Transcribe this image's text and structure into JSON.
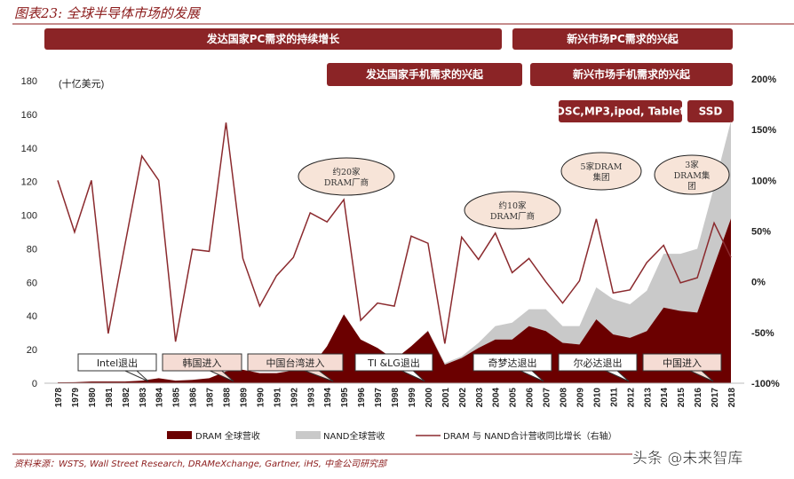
{
  "title": "图表23: 全球半导体市场的发展",
  "source": "资料来源：WSTS, Wall Street Research, DRAMeXchange, Gartner, iHS, 中金公司研究部",
  "watermark": "头条 @未来智库",
  "colors": {
    "dram": "#6b0000",
    "nand": "#c9c9c9",
    "growth_line": "#8b2a2e",
    "banner": "#8b2426",
    "ellipse": "#f7e4d8",
    "callout_pink": "#f5dcd4"
  },
  "banners": [
    {
      "label": "发达国家PC需求的持续增长"
    },
    {
      "label": "新兴市场PC需求的兴起"
    },
    {
      "label": "发达国家手机需求的兴起"
    },
    {
      "label": "新兴市场手机需求的兴起"
    },
    {
      "label": "DSC,MP3,ipod, Tablet"
    },
    {
      "label": "SSD"
    }
  ],
  "ellipses": [
    {
      "lines": [
        "约20家",
        "DRAM厂商"
      ]
    },
    {
      "lines": [
        "约10家",
        "DRAM厂商"
      ]
    },
    {
      "lines": [
        "5家DRAM",
        "集团"
      ]
    },
    {
      "lines": [
        "3家",
        "DRAM集",
        "团"
      ]
    }
  ],
  "callouts": [
    {
      "label": "Intel退出",
      "style": "white"
    },
    {
      "label": "韩国进入",
      "style": "pink"
    },
    {
      "label": "中国台湾进入",
      "style": "pink"
    },
    {
      "label": "TI &LG退出",
      "style": "white"
    },
    {
      "label": "奇梦达退出",
      "style": "white"
    },
    {
      "label": "尔必达退出",
      "style": "white"
    },
    {
      "label": "中国进入",
      "style": "pink"
    }
  ],
  "chart_data": {
    "type": "area",
    "unit_label": "(十亿美元)",
    "x": [
      1978,
      1979,
      1980,
      1981,
      1982,
      1983,
      1984,
      1985,
      1986,
      1987,
      1988,
      1989,
      1990,
      1991,
      1992,
      1993,
      1994,
      1995,
      1996,
      1997,
      1998,
      1999,
      2000,
      2001,
      2002,
      2003,
      2004,
      2005,
      2006,
      2007,
      2008,
      2009,
      2010,
      2011,
      2012,
      2013,
      2014,
      2015,
      2016,
      2017,
      2018
    ],
    "x_tick_labels": [
      "1978",
      "1979",
      "1980",
      "1981",
      "1982",
      "1983",
      "1984",
      "1985",
      "1986",
      "1987",
      "1988",
      "1989",
      "1990",
      "1991",
      "1992",
      "1993",
      "1994",
      "1995",
      "1996",
      "1997",
      "1998",
      "1999",
      "2000",
      "2001",
      "2002",
      "2003",
      "2004",
      "2005",
      "2006",
      "2007",
      "2008",
      "2009",
      "2010",
      "2011",
      "2012",
      "2013",
      "2014",
      "2015",
      "2016",
      "2017",
      "2018"
    ],
    "ylim_left": [
      0,
      180
    ],
    "y_left_ticks": [
      "0",
      "20",
      "40",
      "60",
      "80",
      "100",
      "120",
      "140",
      "160",
      "180"
    ],
    "ylim_right": [
      -100,
      200
    ],
    "y_right_ticks": [
      "-100%",
      "-50%",
      "0%",
      "50%",
      "100%",
      "150%",
      "200%"
    ],
    "grid": false,
    "legend_position": "bottom",
    "series": [
      {
        "name": "DRAM 全球营收",
        "type": "stacked-area",
        "axis": "left",
        "values": [
          0.5,
          0.6,
          1,
          1,
          1,
          1.5,
          3,
          1.5,
          2,
          3,
          7,
          8,
          6,
          6,
          7.5,
          9,
          22,
          41,
          26,
          21,
          14,
          22,
          31,
          11,
          15,
          21,
          26,
          26,
          34,
          31,
          24,
          23,
          38,
          29,
          27,
          31,
          45,
          43,
          42,
          70,
          98
        ]
      },
      {
        "name": "NAND全球营收",
        "type": "stacked-area",
        "axis": "left",
        "values": [
          0,
          0,
          0,
          0,
          0,
          0,
          0,
          0,
          0,
          0,
          0,
          0,
          0,
          0,
          0,
          0,
          0,
          0,
          0,
          0,
          0,
          0,
          0.5,
          1,
          1,
          3,
          8,
          10,
          10,
          13,
          10,
          11,
          19,
          21,
          20,
          24,
          32,
          34,
          38,
          47,
          58
        ]
      },
      {
        "name": "DRAM 与 NAND合计营收同比增长（右轴）",
        "type": "line",
        "axis": "right",
        "values": [
          100,
          49,
          100,
          -51,
          37,
          124,
          100,
          -59,
          32,
          30,
          157,
          23,
          -24,
          6,
          24,
          68,
          59,
          81,
          -38,
          -21,
          -24,
          45,
          38,
          -61,
          44,
          22,
          48,
          9,
          23,
          0,
          -21,
          1,
          62,
          -11,
          -8,
          19,
          36,
          -1,
          4,
          58,
          24
        ]
      }
    ]
  }
}
